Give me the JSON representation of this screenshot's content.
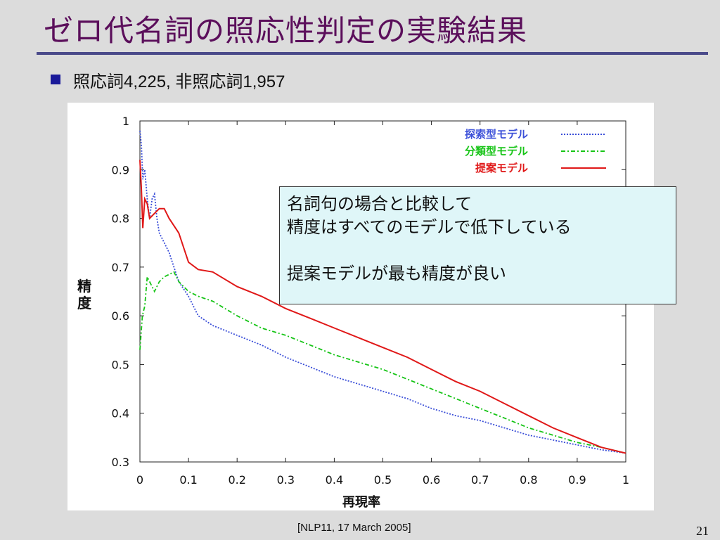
{
  "slide": {
    "title": "ゼロ代名詞の照応性判定の実験結果",
    "bullet": "照応詞4,225, 非照応詞1,957",
    "footer": "[NLP11, 17 March 2005]",
    "page_number": "21"
  },
  "callout": {
    "lines": [
      "名詞句の場合と比較して",
      "精度はすべてのモデルで低下している",
      "",
      "提案モデルが最も精度が良い"
    ]
  },
  "colors": {
    "title": "#5b0f5b",
    "bullet": "#1a1a9a",
    "callout_bg": "#dff6f8",
    "search_model": "#3b4fd8",
    "classification_model": "#16c416",
    "proposed_model": "#e01818"
  },
  "chart_data": {
    "type": "line",
    "xlabel": "再現率",
    "ylabel": "精度",
    "xlim": [
      0,
      1
    ],
    "ylim": [
      0.3,
      1
    ],
    "xticks": [
      "0",
      "0.1",
      "0.2",
      "0.3",
      "0.4",
      "0.5",
      "0.6",
      "0.7",
      "0.8",
      "0.9",
      "1"
    ],
    "yticks": [
      "0.3",
      "0.4",
      "0.5",
      "0.6",
      "0.7",
      "0.8",
      "0.9",
      "1"
    ],
    "legend_position": "top-right",
    "grid": false,
    "series": [
      {
        "name": "探索型モデル",
        "color": "#3b4fd8",
        "style": "dotted",
        "points": [
          [
            0.0,
            0.98
          ],
          [
            0.003,
            0.95
          ],
          [
            0.006,
            0.88
          ],
          [
            0.01,
            0.9
          ],
          [
            0.015,
            0.84
          ],
          [
            0.02,
            0.8
          ],
          [
            0.025,
            0.84
          ],
          [
            0.03,
            0.85
          ],
          [
            0.035,
            0.8
          ],
          [
            0.04,
            0.77
          ],
          [
            0.05,
            0.75
          ],
          [
            0.06,
            0.73
          ],
          [
            0.07,
            0.7
          ],
          [
            0.08,
            0.67
          ],
          [
            0.1,
            0.64
          ],
          [
            0.12,
            0.6
          ],
          [
            0.15,
            0.58
          ],
          [
            0.2,
            0.56
          ],
          [
            0.25,
            0.54
          ],
          [
            0.3,
            0.515
          ],
          [
            0.35,
            0.495
          ],
          [
            0.4,
            0.475
          ],
          [
            0.45,
            0.46
          ],
          [
            0.5,
            0.445
          ],
          [
            0.55,
            0.43
          ],
          [
            0.6,
            0.41
          ],
          [
            0.65,
            0.395
          ],
          [
            0.7,
            0.385
          ],
          [
            0.75,
            0.37
          ],
          [
            0.8,
            0.355
          ],
          [
            0.85,
            0.345
          ],
          [
            0.9,
            0.335
          ],
          [
            0.95,
            0.325
          ],
          [
            1.0,
            0.318
          ]
        ]
      },
      {
        "name": "分類型モデル",
        "color": "#16c416",
        "style": "dashdot",
        "points": [
          [
            0.0,
            0.53
          ],
          [
            0.005,
            0.6
          ],
          [
            0.01,
            0.62
          ],
          [
            0.015,
            0.68
          ],
          [
            0.02,
            0.67
          ],
          [
            0.03,
            0.65
          ],
          [
            0.04,
            0.67
          ],
          [
            0.05,
            0.68
          ],
          [
            0.07,
            0.69
          ],
          [
            0.08,
            0.67
          ],
          [
            0.1,
            0.65
          ],
          [
            0.12,
            0.64
          ],
          [
            0.15,
            0.63
          ],
          [
            0.2,
            0.6
          ],
          [
            0.25,
            0.575
          ],
          [
            0.3,
            0.56
          ],
          [
            0.35,
            0.54
          ],
          [
            0.4,
            0.52
          ],
          [
            0.45,
            0.505
          ],
          [
            0.5,
            0.49
          ],
          [
            0.55,
            0.47
          ],
          [
            0.6,
            0.45
          ],
          [
            0.65,
            0.43
          ],
          [
            0.7,
            0.41
          ],
          [
            0.75,
            0.39
          ],
          [
            0.8,
            0.37
          ],
          [
            0.85,
            0.355
          ],
          [
            0.9,
            0.34
          ],
          [
            0.95,
            0.33
          ],
          [
            1.0,
            0.318
          ]
        ]
      },
      {
        "name": "提案モデル",
        "color": "#e01818",
        "style": "solid",
        "points": [
          [
            0.0,
            0.92
          ],
          [
            0.003,
            0.86
          ],
          [
            0.006,
            0.78
          ],
          [
            0.01,
            0.84
          ],
          [
            0.015,
            0.83
          ],
          [
            0.02,
            0.8
          ],
          [
            0.03,
            0.81
          ],
          [
            0.04,
            0.82
          ],
          [
            0.05,
            0.82
          ],
          [
            0.06,
            0.8
          ],
          [
            0.08,
            0.77
          ],
          [
            0.1,
            0.71
          ],
          [
            0.12,
            0.695
          ],
          [
            0.15,
            0.69
          ],
          [
            0.2,
            0.66
          ],
          [
            0.25,
            0.64
          ],
          [
            0.3,
            0.615
          ],
          [
            0.35,
            0.595
          ],
          [
            0.4,
            0.575
          ],
          [
            0.45,
            0.555
          ],
          [
            0.5,
            0.535
          ],
          [
            0.55,
            0.515
          ],
          [
            0.6,
            0.49
          ],
          [
            0.65,
            0.465
          ],
          [
            0.7,
            0.445
          ],
          [
            0.75,
            0.42
          ],
          [
            0.8,
            0.395
          ],
          [
            0.85,
            0.37
          ],
          [
            0.9,
            0.35
          ],
          [
            0.95,
            0.33
          ],
          [
            1.0,
            0.318
          ]
        ]
      }
    ]
  }
}
